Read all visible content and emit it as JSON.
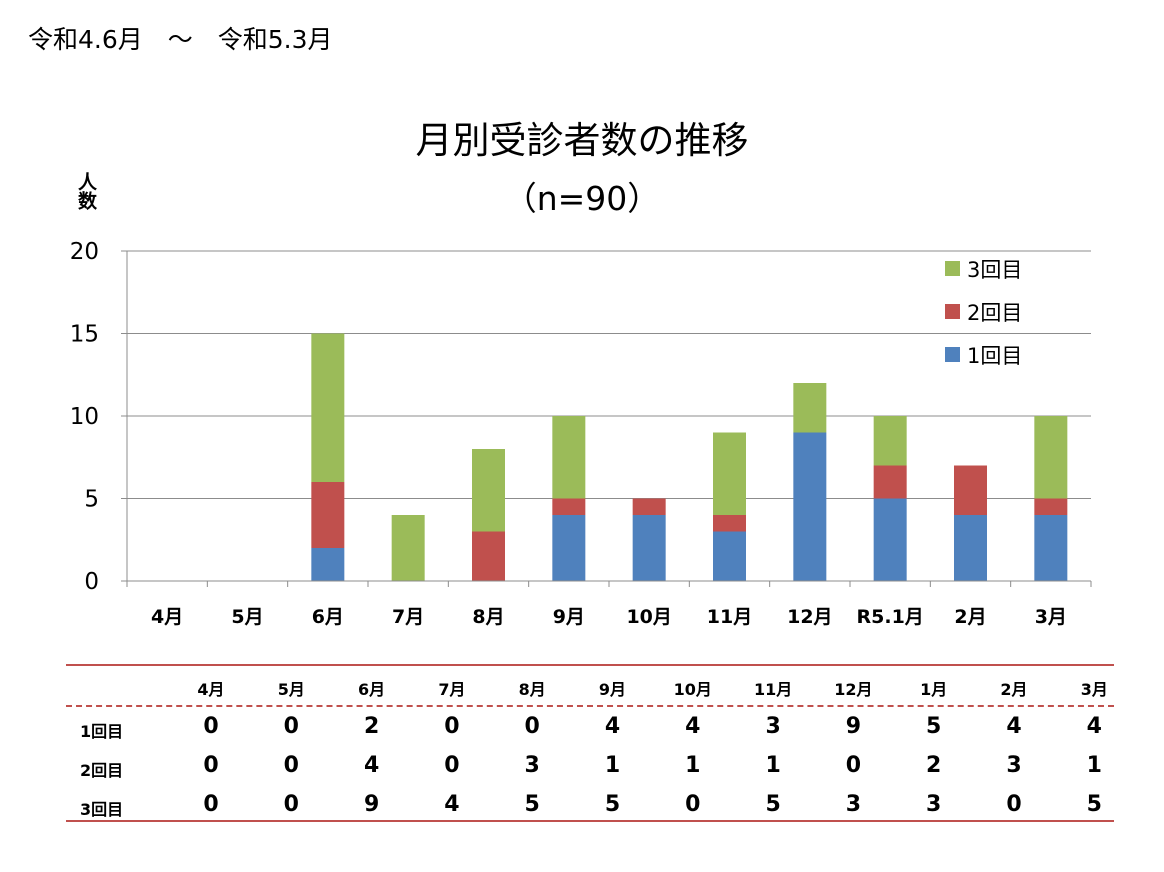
{
  "header": {
    "period": "令和4.6月　～　令和5.3月"
  },
  "chart_data": {
    "type": "bar",
    "stacked": true,
    "title": "月別受診者数の推移",
    "subtitle": "（n=90）",
    "ylabel": "人数",
    "xlabel": "",
    "ylim": [
      0,
      20
    ],
    "yticks": [
      0,
      5,
      10,
      15,
      20
    ],
    "grid": true,
    "legend_position": "top-right",
    "categories": [
      "4月",
      "5月",
      "6月",
      "7月",
      "8月",
      "9月",
      "10月",
      "11月",
      "12月",
      "R5.1月",
      "2月",
      "3月"
    ],
    "series": [
      {
        "name": "1回目",
        "color": "#4f81bd",
        "values": [
          0,
          0,
          2,
          0,
          0,
          4,
          4,
          3,
          9,
          5,
          4,
          4
        ]
      },
      {
        "name": "2回目",
        "color": "#c0504d",
        "values": [
          0,
          0,
          4,
          0,
          3,
          1,
          1,
          1,
          0,
          2,
          3,
          1
        ]
      },
      {
        "name": "3回目",
        "color": "#9bbb59",
        "values": [
          0,
          0,
          9,
          4,
          5,
          5,
          0,
          5,
          3,
          3,
          0,
          5
        ]
      }
    ]
  },
  "table": {
    "columns": [
      "4月",
      "5月",
      "6月",
      "7月",
      "8月",
      "9月",
      "10月",
      "11月",
      "12月",
      "1月",
      "2月",
      "3月"
    ],
    "rows": [
      {
        "label": "1回目",
        "values": [
          "0",
          "0",
          "2",
          "0",
          "0",
          "4",
          "4",
          "3",
          "9",
          "5",
          "4",
          "4"
        ]
      },
      {
        "label": "2回目",
        "values": [
          "0",
          "0",
          "4",
          "0",
          "3",
          "1",
          "1",
          "1",
          "0",
          "2",
          "3",
          "1"
        ]
      },
      {
        "label": "3回目",
        "values": [
          "0",
          "0",
          "9",
          "4",
          "5",
          "5",
          "0",
          "5",
          "3",
          "3",
          "0",
          "5"
        ]
      }
    ]
  }
}
